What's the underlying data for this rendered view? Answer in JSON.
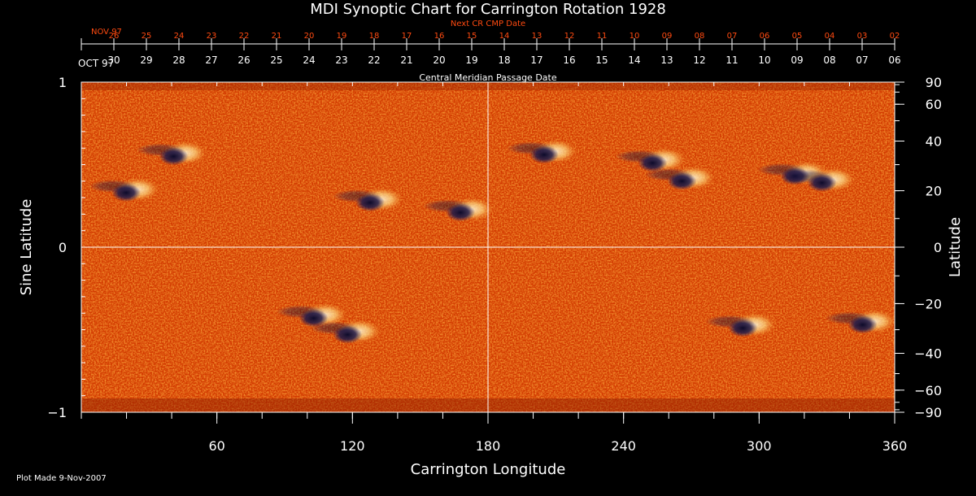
{
  "chart_data": {
    "type": "heatmap",
    "title": "MDI Synoptic Chart for Carrington Rotation 1928",
    "xlabel": "Carrington Longitude",
    "ylabel_left": "Sine Latitude",
    "ylabel_right": "Latitude",
    "xlim": [
      0,
      360
    ],
    "ylim": [
      -1,
      1
    ],
    "x_ticks": [
      60,
      120,
      180,
      240,
      300,
      360
    ],
    "y_ticks_left": [
      {
        "value": 1,
        "label": "1"
      },
      {
        "value": 0,
        "label": "0"
      },
      {
        "value": -1,
        "label": "−1"
      }
    ],
    "y_ticks_right_degrees": [
      90,
      60,
      40,
      20,
      0,
      -20,
      -40,
      -60,
      -90
    ],
    "grid_lines": {
      "longitude": 180,
      "sine_latitude": 0
    },
    "cmp_axis": {
      "label": "Central Meridian Passage Date",
      "month_label": "OCT 97",
      "dates": [
        "30",
        "29",
        "28",
        "27",
        "26",
        "25",
        "24",
        "23",
        "22",
        "21",
        "20",
        "19",
        "18",
        "17",
        "16",
        "15",
        "14",
        "13",
        "12",
        "11",
        "10",
        "09",
        "08",
        "07",
        "06"
      ]
    },
    "next_cr_axis": {
      "label": "Next CR CMP Date",
      "month_label": "NOV 97",
      "dates": [
        "26",
        "25",
        "24",
        "23",
        "22",
        "21",
        "20",
        "19",
        "18",
        "17",
        "16",
        "15",
        "14",
        "13",
        "12",
        "11",
        "10",
        "09",
        "08",
        "07",
        "06",
        "05",
        "04",
        "03",
        "02"
      ]
    },
    "colors": {
      "background": "#000000",
      "axis": "#ffffff",
      "next_cr_text": "#ff4a10",
      "field_low": "#1a1540",
      "field_mid": "#ff5a00",
      "field_high": "#fff8c8"
    },
    "active_regions": [
      {
        "lon": 22,
        "sinlat": 0.34
      },
      {
        "lon": 43,
        "sinlat": 0.56
      },
      {
        "lon": 130,
        "sinlat": 0.28
      },
      {
        "lon": 170,
        "sinlat": 0.22
      },
      {
        "lon": 207,
        "sinlat": 0.57
      },
      {
        "lon": 255,
        "sinlat": 0.52
      },
      {
        "lon": 268,
        "sinlat": 0.41
      },
      {
        "lon": 318,
        "sinlat": 0.44
      },
      {
        "lon": 330,
        "sinlat": 0.4
      },
      {
        "lon": 105,
        "sinlat": -0.42
      },
      {
        "lon": 120,
        "sinlat": -0.52
      },
      {
        "lon": 295,
        "sinlat": -0.48
      },
      {
        "lon": 348,
        "sinlat": -0.46
      }
    ]
  },
  "footer": {
    "plot_made": "Plot Made  9-Nov-2007"
  }
}
